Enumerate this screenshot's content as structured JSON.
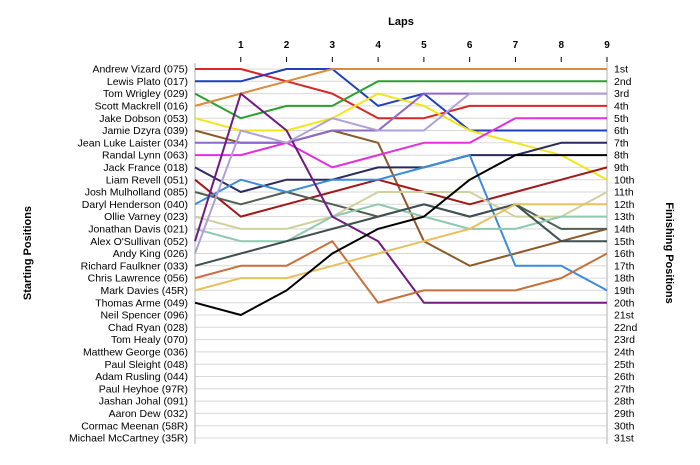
{
  "chart_data": {
    "type": "line",
    "title": "Laps",
    "ylabel_left": "Starting Positions",
    "ylabel_right": "Finishing Positions",
    "x": [
      0,
      1,
      2,
      3,
      4,
      5,
      6,
      7,
      8,
      9
    ],
    "x_tick_labels": [
      "1",
      "2",
      "3",
      "4",
      "5",
      "6",
      "7",
      "8",
      "9"
    ],
    "xlim": [
      0,
      9
    ],
    "ylim": [
      1,
      31
    ],
    "y_inverted": true,
    "grid": "horizontal",
    "start_labels": [
      "Andrew Vizard (075)",
      "Lewis Plato (017)",
      "Tom Wrigley (029)",
      "Scott Mackrell (016)",
      "Jake Dobson (053)",
      "Jamie Dzyra (039)",
      "Jean Luke Laister (034)",
      "Randal Lynn (063)",
      "Jack France (018)",
      "Liam Revell (051)",
      "Josh Mulholland (085)",
      "Daryl Henderson (040)",
      "Ollie Varney (023)",
      "Jonathan Davis (021)",
      "Alex O'Sullivan (052)",
      "Andy King (026)",
      "Richard Faulkner (033)",
      "Chris Lawrence (056)",
      "Mark Davies (45R)",
      "Thomas Arme (049)",
      "Neil Spencer (096)",
      "Chad Ryan (028)",
      "Tom Healy (070)",
      "Matthew George (036)",
      "Paul Sleight (048)",
      "Adam Rusling (044)",
      "Paul Heyhoe (97R)",
      "Jashan Johal (091)",
      "Aaron Dew (032)",
      "Cormac Meenan (58R)",
      "Michael McCartney (35R)"
    ],
    "finish_labels": [
      "1st",
      "2nd",
      "3rd",
      "4th",
      "5th",
      "6th",
      "7th",
      "8th",
      "9th",
      "10th",
      "11th",
      "12th",
      "13th",
      "14th",
      "15th",
      "16th",
      "17th",
      "18th",
      "19th",
      "20th",
      "21st",
      "22nd",
      "23rd",
      "24th",
      "25th",
      "26th",
      "27th",
      "28th",
      "29th",
      "30th",
      "31st"
    ],
    "series": [
      {
        "color": "#d62728",
        "values": [
          1,
          1,
          2,
          3,
          5,
          5,
          4,
          4,
          4,
          4
        ]
      },
      {
        "color": "#1f3fbf",
        "values": [
          2,
          2,
          1,
          1,
          4,
          3,
          6,
          6,
          6,
          6
        ]
      },
      {
        "color": "#2ca02c",
        "values": [
          3,
          5,
          4,
          4,
          2,
          2,
          2,
          2,
          2,
          2
        ]
      },
      {
        "color": "#d98c3c",
        "values": [
          4,
          3,
          2,
          1,
          1,
          1,
          1,
          1,
          1,
          1
        ]
      },
      {
        "color": "#f2e51a",
        "values": [
          5,
          6,
          6,
          5,
          3,
          4,
          6,
          7,
          8,
          10
        ]
      },
      {
        "color": "#8b5a2b",
        "values": [
          6,
          7,
          7,
          6,
          7,
          15,
          17,
          16,
          15,
          14
        ]
      },
      {
        "color": "#8c68c8",
        "values": [
          7,
          7,
          7,
          6,
          6,
          3,
          3,
          3,
          3,
          3
        ]
      },
      {
        "color": "#e030e0",
        "values": [
          8,
          8,
          7,
          9,
          8,
          7,
          7,
          5,
          5,
          5
        ]
      },
      {
        "color": "#2a2a60",
        "values": [
          9,
          11,
          10,
          10,
          9,
          9,
          8,
          8,
          7,
          7
        ]
      },
      {
        "color": "#a01818",
        "values": [
          10,
          13,
          12,
          11,
          10,
          11,
          12,
          11,
          10,
          9
        ]
      },
      {
        "color": "#506050",
        "values": [
          11,
          12,
          11,
          12,
          13,
          12,
          13,
          12,
          14,
          14
        ]
      },
      {
        "color": "#3c8cdc",
        "values": [
          12,
          10,
          11,
          10,
          10,
          9,
          8,
          17,
          17,
          19
        ]
      },
      {
        "color": "#d0d0a0",
        "values": [
          13,
          14,
          14,
          13,
          11,
          11,
          11,
          13,
          13,
          11
        ]
      },
      {
        "color": "#90c8b0",
        "values": [
          14,
          15,
          15,
          13,
          12,
          13,
          14,
          14,
          13,
          13
        ]
      },
      {
        "color": "#701a80",
        "values": [
          15,
          3,
          6,
          13,
          15,
          20,
          20,
          20,
          20,
          20
        ]
      },
      {
        "color": "#b0a0d8",
        "values": [
          16,
          6,
          7,
          5,
          6,
          6,
          3,
          3,
          3,
          3
        ]
      },
      {
        "color": "#405050",
        "values": [
          17,
          16,
          15,
          14,
          13,
          12,
          13,
          12,
          15,
          15
        ]
      },
      {
        "color": "#c8703c",
        "values": [
          18,
          17,
          17,
          15,
          20,
          19,
          19,
          19,
          18,
          16
        ]
      },
      {
        "color": "#e8c060",
        "values": [
          19,
          18,
          18,
          17,
          16,
          15,
          14,
          12,
          12,
          12
        ]
      },
      {
        "color": "#000000",
        "values": [
          20,
          21,
          19,
          16,
          14,
          13,
          10,
          8,
          8,
          8
        ]
      }
    ]
  }
}
